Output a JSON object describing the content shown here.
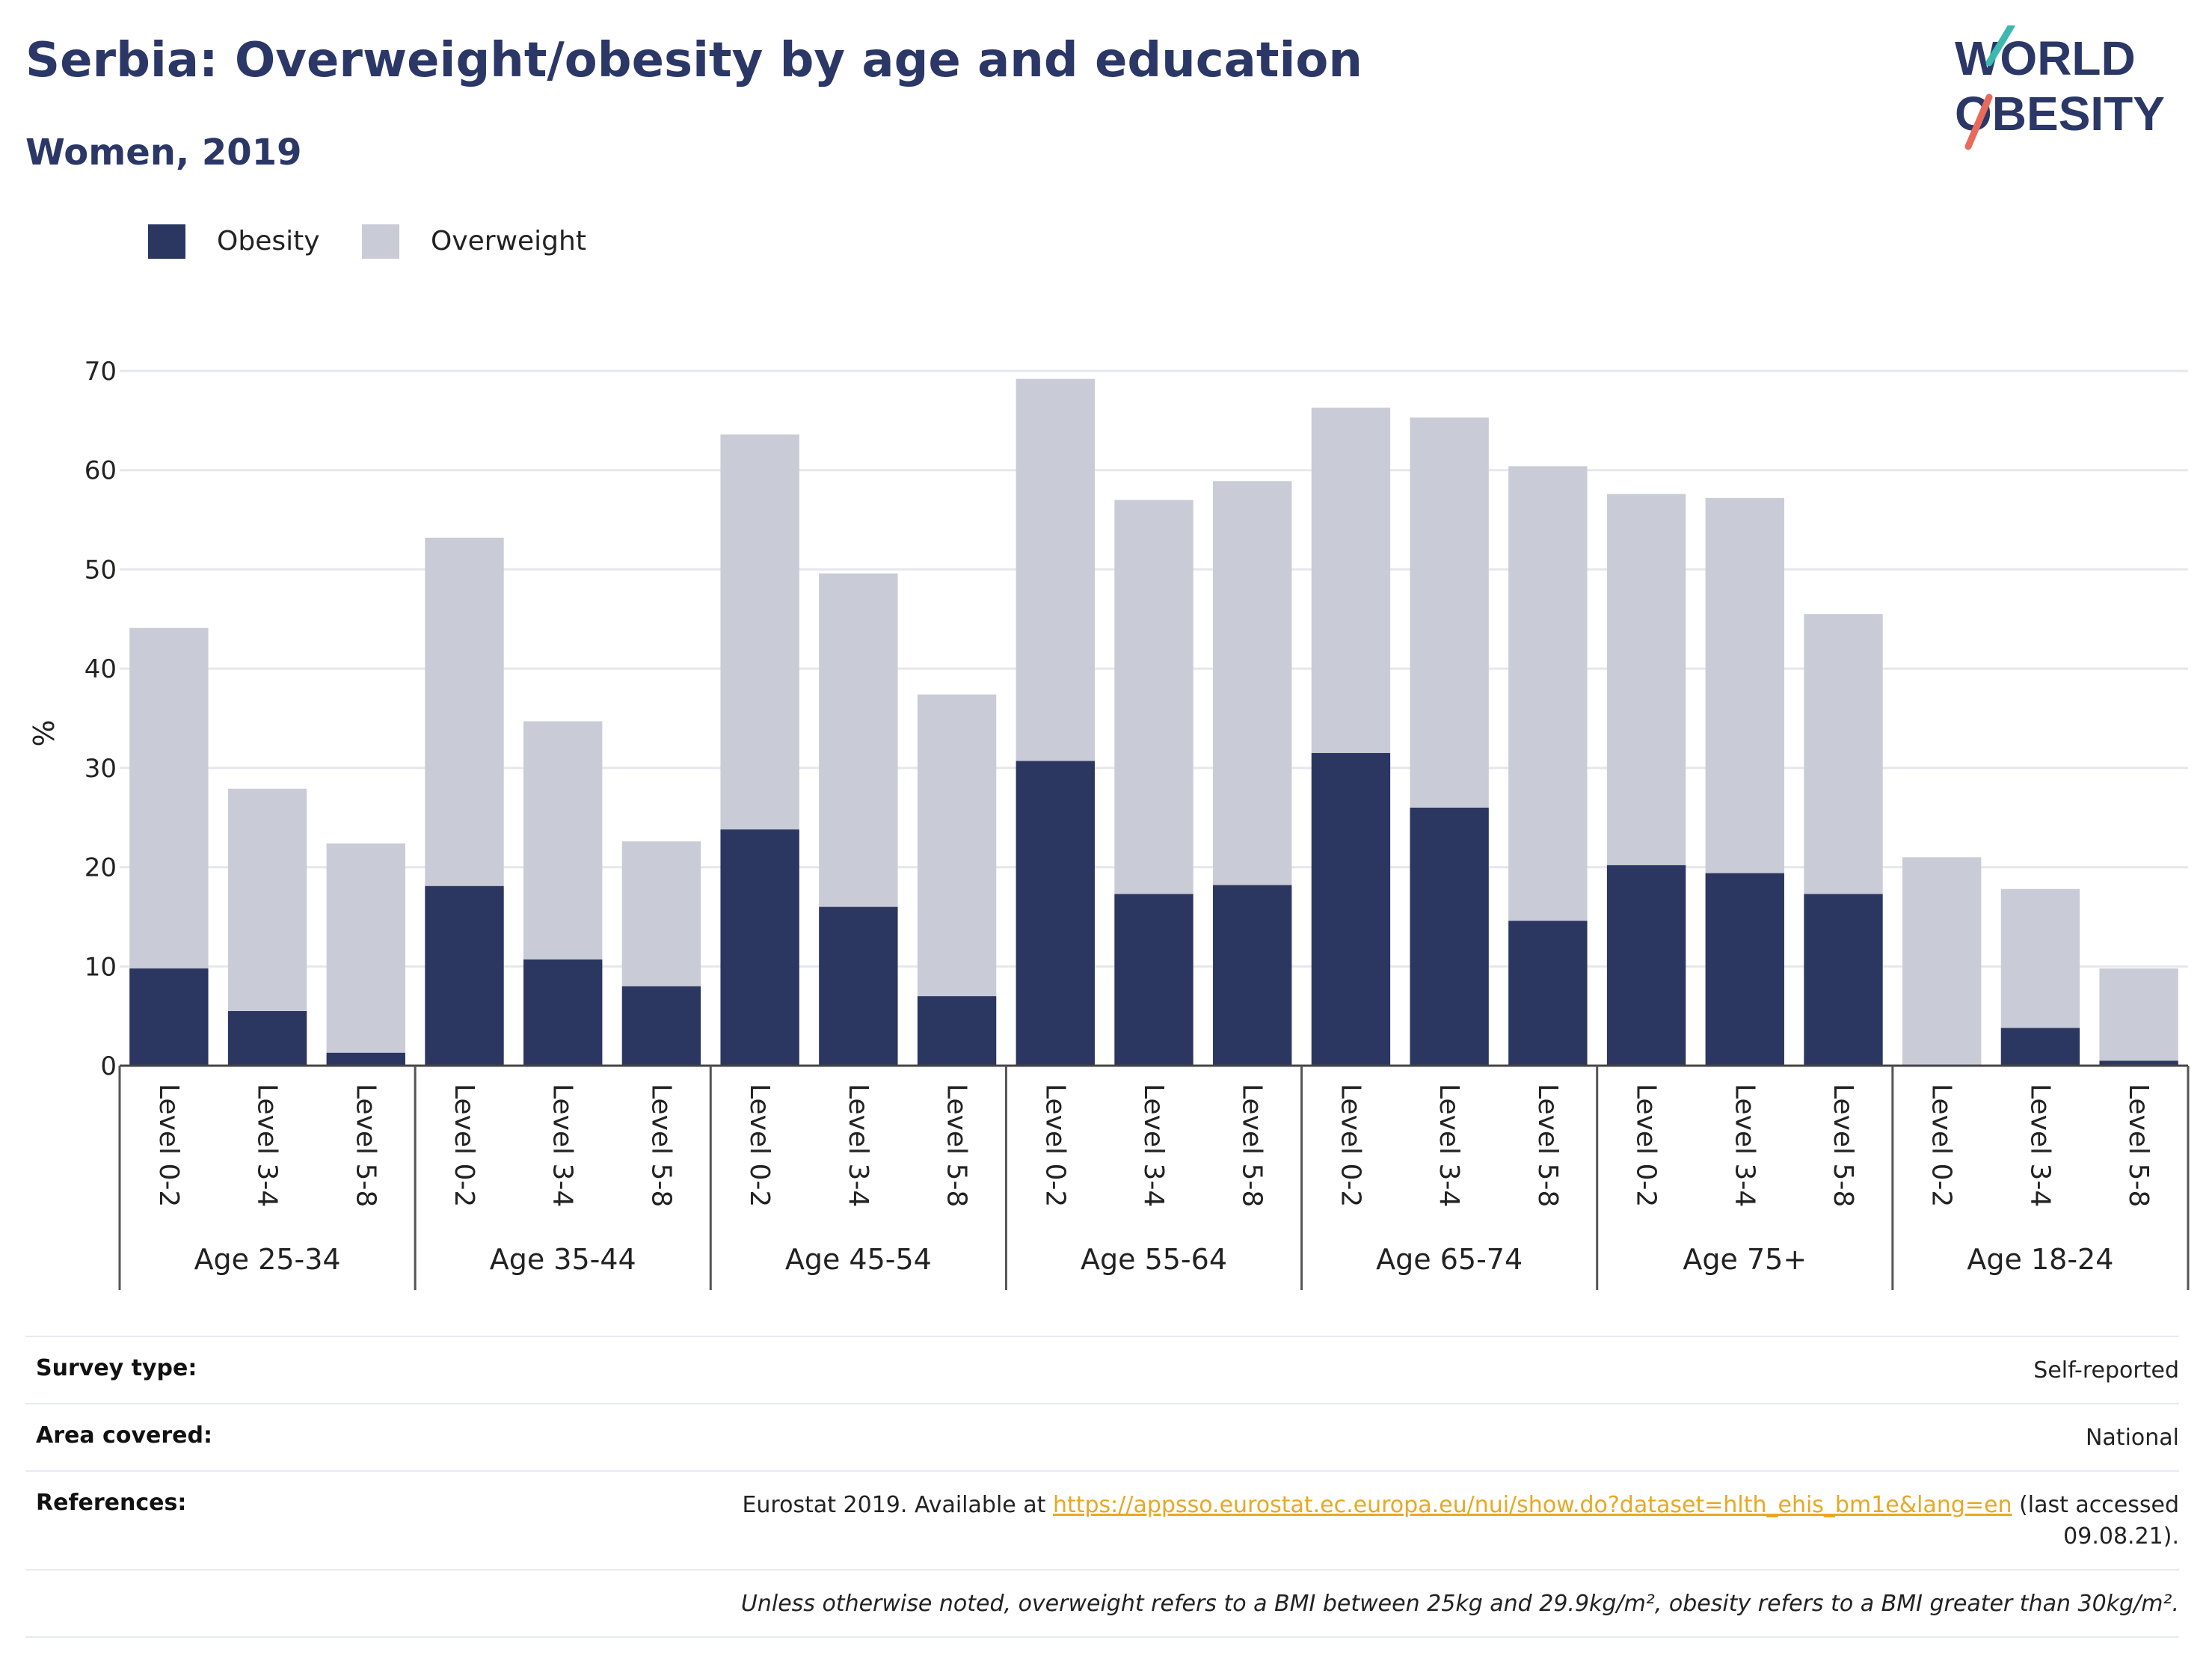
{
  "header": {
    "title": "Serbia: Overweight/obesity by age and education",
    "subtitle": "Women, 2019"
  },
  "logo": {
    "line1": "WORLD",
    "line2": "OBESITY"
  },
  "legend": [
    {
      "label": "Obesity",
      "color": "#2b3661"
    },
    {
      "label": "Overweight",
      "color": "#c9cbd6"
    }
  ],
  "chart_data": {
    "type": "bar",
    "stacked": true,
    "ylabel": "%",
    "ylim": [
      0,
      70
    ],
    "yticks": [
      0,
      10,
      20,
      30,
      40,
      50,
      60,
      70
    ],
    "grid": true,
    "legend_position": "top-left",
    "groups": [
      {
        "label": "Age 25-34",
        "categories": [
          "Level 0-2",
          "Level 3-4",
          "Level 5-8"
        ]
      },
      {
        "label": "Age 35-44",
        "categories": [
          "Level 0-2",
          "Level 3-4",
          "Level 5-8"
        ]
      },
      {
        "label": "Age 45-54",
        "categories": [
          "Level 0-2",
          "Level 3-4",
          "Level 5-8"
        ]
      },
      {
        "label": "Age 55-64",
        "categories": [
          "Level 0-2",
          "Level 3-4",
          "Level 5-8"
        ]
      },
      {
        "label": "Age 65-74",
        "categories": [
          "Level 0-2",
          "Level 3-4",
          "Level 5-8"
        ]
      },
      {
        "label": "Age 75+",
        "categories": [
          "Level 0-2",
          "Level 3-4",
          "Level 5-8"
        ]
      },
      {
        "label": "Age 18-24",
        "categories": [
          "Level 0-2",
          "Level 3-4",
          "Level 5-8"
        ]
      }
    ],
    "series": [
      {
        "name": "Obesity",
        "color": "#2b3661",
        "values": [
          9.8,
          5.5,
          1.3,
          18.1,
          10.7,
          8.0,
          23.8,
          16.0,
          7.0,
          30.7,
          17.3,
          18.2,
          31.5,
          26.0,
          14.6,
          20.2,
          19.4,
          17.3,
          0.0,
          3.8,
          0.5
        ]
      },
      {
        "name": "Overweight",
        "color": "#c9cbd6",
        "values": [
          34.3,
          22.4,
          21.1,
          35.1,
          24.0,
          14.6,
          39.8,
          33.6,
          30.4,
          38.5,
          39.7,
          40.7,
          34.8,
          39.3,
          45.8,
          37.4,
          37.8,
          28.2,
          21.0,
          14.0,
          9.3
        ]
      }
    ]
  },
  "info": {
    "survey_key": "Survey type:",
    "survey_val": "Self-reported",
    "area_key": "Area covered:",
    "area_val": "National",
    "ref_key": "References:",
    "ref_pre": "Eurostat 2019. Available at ",
    "ref_link": "https://appsso.eurostat.ec.europa.eu/nui/show.do?dataset=hlth_ehis_bm1e&lang=en",
    "ref_post": " (last accessed",
    "ref_date": "09.08.21).",
    "note": "Unless otherwise noted, overweight refers to a BMI between 25kg and 29.9kg/m², obesity refers to a BMI greater than 30kg/m²."
  }
}
